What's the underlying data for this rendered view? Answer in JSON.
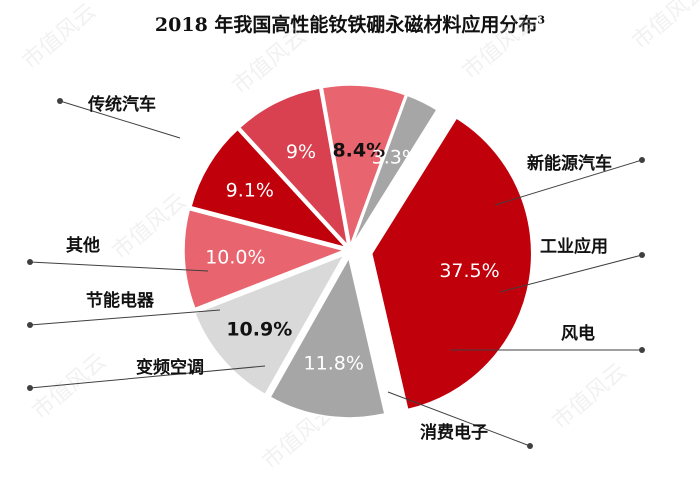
{
  "title": "2018 年我国高性能钕铁硼永磁材料应用分布",
  "title_superscript": "3",
  "watermark": "市值风云",
  "chart_data": {
    "type": "pie",
    "title": "2018 年我国高性能钕铁硼永磁材料应用分布",
    "unit": "%",
    "slices": [
      {
        "label": "传统汽车",
        "value": 37.5,
        "value_label": "37.5%",
        "color": "#c0000b",
        "label_color": "#ffffff"
      },
      {
        "label": "新能源汽车",
        "value": 11.8,
        "value_label": "11.8%",
        "color": "#a6a6a6",
        "label_color": "#ffffff"
      },
      {
        "label": "工业应用",
        "value": 10.9,
        "value_label": "10.9%",
        "color": "#d9d9d9",
        "label_color": "#111111"
      },
      {
        "label": "风电",
        "value": 10.0,
        "value_label": "10.0%",
        "color": "#e8646e",
        "label_color": "#ffffff"
      },
      {
        "label": "消费电子",
        "value": 9.1,
        "value_label": "9.1%",
        "color": "#c0000b",
        "label_color": "#ffffff"
      },
      {
        "label": "变频空调",
        "value": 9,
        "value_label": "9%",
        "color": "#d94150",
        "label_color": "#ffffff"
      },
      {
        "label": "节能电器",
        "value": 8.4,
        "value_label": "8.4%",
        "color": "#e8646e",
        "label_color": "#111111"
      },
      {
        "label": "其他",
        "value": 3.3,
        "value_label": "3.3%",
        "color": "#a6a6a6",
        "label_color": "#ffffff"
      }
    ]
  }
}
